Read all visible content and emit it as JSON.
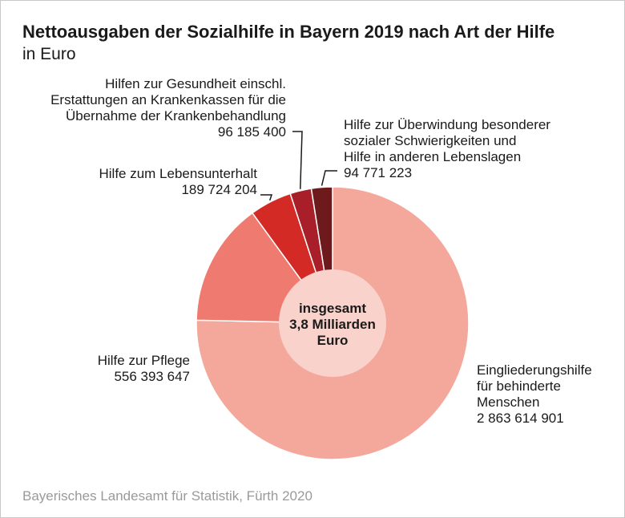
{
  "header": {
    "title": "Nettoausgaben der Sozialhilfe in Bayern 2019 nach Art der Hilfe",
    "subtitle": "in Euro"
  },
  "footer": {
    "source": "Bayerisches Landesamt für Statistik, Fürth 2020"
  },
  "chart_data": {
    "type": "pie",
    "title": "Nettoausgaben der Sozialhilfe in Bayern 2019 nach Art der Hilfe",
    "subtitle": "in Euro",
    "center_label": [
      "insgesamt",
      "3,8 Milliarden",
      "Euro"
    ],
    "slices": [
      {
        "label_lines": [
          "Eingliederungshilfe",
          "für behinderte",
          "Menschen"
        ],
        "value": 2863614901,
        "value_label": "2 863 614 901",
        "color": "#f4a89b"
      },
      {
        "label_lines": [
          "Hilfe zur Pflege"
        ],
        "value": 556393647,
        "value_label": "556 393 647",
        "color": "#ee7a70"
      },
      {
        "label_lines": [
          "Hilfe zum Lebensunterhalt"
        ],
        "value": 189724204,
        "value_label": "189 724 204",
        "color": "#d42a26"
      },
      {
        "label_lines": [
          "Hilfen zur Gesundheit einschl.",
          "Erstattungen an Krankenkassen für die",
          "Übernahme der Krankenbehandlung"
        ],
        "value": 96185400,
        "value_label": "96 185 400",
        "color": "#a81f2a"
      },
      {
        "label_lines": [
          "Hilfe zur Überwindung besonderer",
          "sozialer Schwierigkeiten und",
          "Hilfe in anderen Lebenslagen"
        ],
        "value": 94771223,
        "value_label": "94 771 223",
        "color": "#6e1a1c"
      }
    ]
  }
}
